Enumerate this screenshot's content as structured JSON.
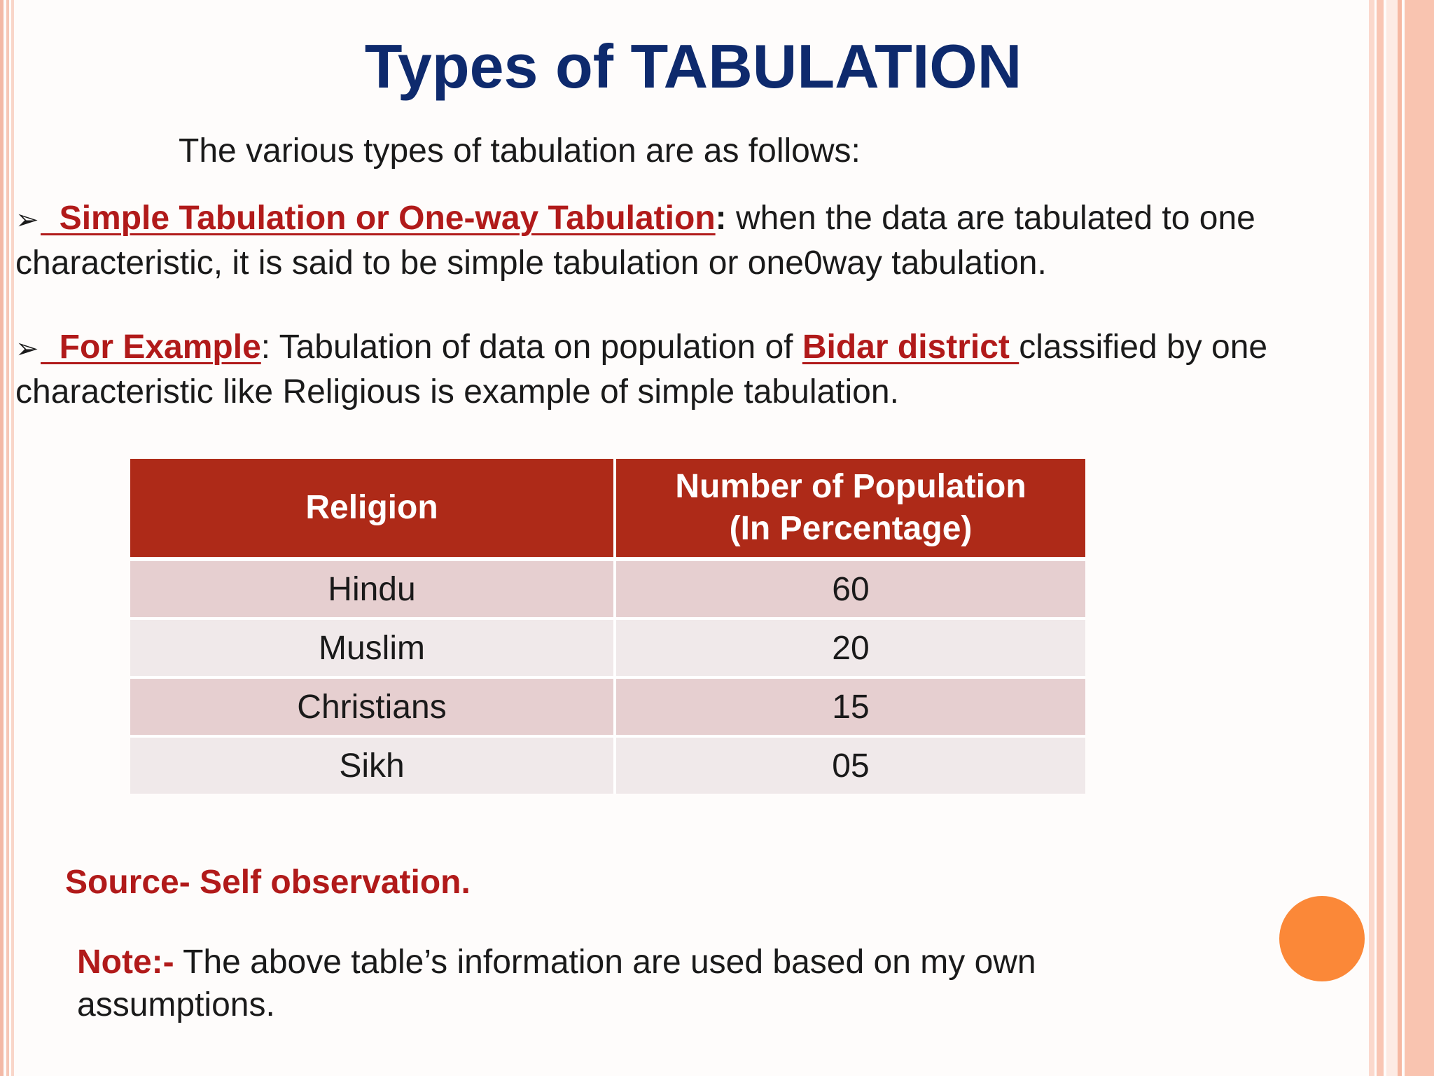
{
  "title": "Types of  TABULATION",
  "intro": "The various types of tabulation are as follows:",
  "points": [
    {
      "bullet": "➢",
      "label": "  Simple Tabulation or One-way Tabulation",
      "separator": ":",
      "text": " when the data are tabulated to one characteristic, it is said to be simple tabulation or one0way tabulation."
    },
    {
      "bullet": "➢",
      "label": "  For Example",
      "separator": ":",
      "text_before": " Tabulation of data on population of ",
      "highlight": "Bidar district ",
      "text_after": "classified by one characteristic like Religious is example of simple tabulation."
    }
  ],
  "table": {
    "headers": [
      "Religion",
      "Number of Population (In Percentage)"
    ],
    "header_line1": "Number of Population",
    "header_line2": "(In Percentage)",
    "rows": [
      {
        "religion": "Hindu",
        "percent": "60"
      },
      {
        "religion": "Muslim",
        "percent": "20"
      },
      {
        "religion": "Christians",
        "percent": "15"
      },
      {
        "religion": "Sikh",
        "percent": "05"
      }
    ]
  },
  "source": "Source- Self observation.",
  "note": {
    "label": "Note:-",
    "text": " The above table’s information are used based on my own assumptions."
  },
  "colors": {
    "title": "#0e2a6d",
    "accent_red": "#b11a1a",
    "table_header": "#ae2a18",
    "row_odd": "#e6cfd0",
    "row_even": "#f0e9ea",
    "dot": "#fb8838"
  }
}
